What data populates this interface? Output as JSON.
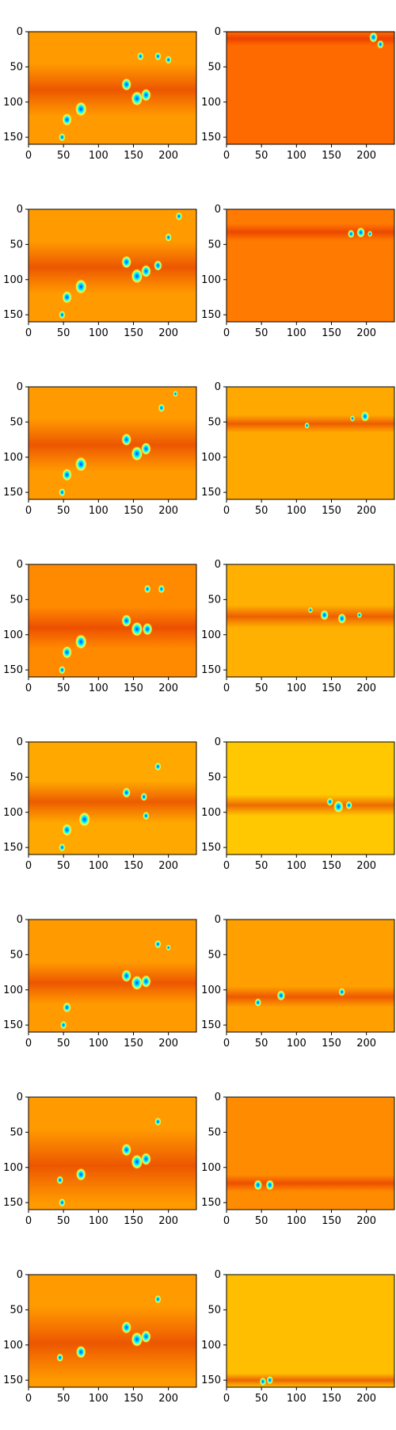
{
  "chart_data": {
    "type": "heatmap",
    "layout": {
      "rows": 8,
      "cols": 2
    },
    "x_range": [
      0,
      240
    ],
    "y_range": [
      0,
      160
    ],
    "y_inverted": true,
    "x_ticks": [
      0,
      50,
      100,
      150,
      200
    ],
    "y_ticks": [
      0,
      50,
      100,
      150
    ],
    "colormap": "jet",
    "grid": false,
    "panels": [
      {
        "row": 0,
        "col": 0,
        "background": "#ff9a00",
        "band_y": [
          45,
          120
        ],
        "blobs": [
          {
            "x": 140,
            "y": 75,
            "r": 6
          },
          {
            "x": 155,
            "y": 95,
            "r": 7
          },
          {
            "x": 168,
            "y": 90,
            "r": 6
          },
          {
            "x": 185,
            "y": 35,
            "r": 4
          },
          {
            "x": 75,
            "y": 110,
            "r": 7
          },
          {
            "x": 55,
            "y": 125,
            "r": 6
          },
          {
            "x": 48,
            "y": 150,
            "r": 4
          },
          {
            "x": 160,
            "y": 35,
            "r": 4
          },
          {
            "x": 200,
            "y": 40,
            "r": 4
          }
        ]
      },
      {
        "row": 0,
        "col": 1,
        "background": "#ff6a00",
        "band_y": [
          0,
          20
        ],
        "blobs": [
          {
            "x": 210,
            "y": 8,
            "r": 5
          },
          {
            "x": 220,
            "y": 18,
            "r": 4
          }
        ]
      },
      {
        "row": 1,
        "col": 0,
        "background": "#ff9a00",
        "band_y": [
          45,
          120
        ],
        "blobs": [
          {
            "x": 140,
            "y": 75,
            "r": 6
          },
          {
            "x": 155,
            "y": 95,
            "r": 7
          },
          {
            "x": 168,
            "y": 88,
            "r": 6
          },
          {
            "x": 185,
            "y": 80,
            "r": 5
          },
          {
            "x": 75,
            "y": 110,
            "r": 7
          },
          {
            "x": 55,
            "y": 125,
            "r": 6
          },
          {
            "x": 48,
            "y": 150,
            "r": 4
          },
          {
            "x": 200,
            "y": 40,
            "r": 4
          },
          {
            "x": 215,
            "y": 10,
            "r": 4
          }
        ]
      },
      {
        "row": 1,
        "col": 1,
        "background": "#ff7a00",
        "band_y": [
          20,
          45
        ],
        "blobs": [
          {
            "x": 192,
            "y": 33,
            "r": 5
          },
          {
            "x": 178,
            "y": 35,
            "r": 4
          },
          {
            "x": 205,
            "y": 35,
            "r": 3
          }
        ]
      },
      {
        "row": 2,
        "col": 0,
        "background": "#ff9a00",
        "band_y": [
          45,
          120
        ],
        "blobs": [
          {
            "x": 140,
            "y": 75,
            "r": 6
          },
          {
            "x": 155,
            "y": 95,
            "r": 7
          },
          {
            "x": 168,
            "y": 88,
            "r": 6
          },
          {
            "x": 75,
            "y": 110,
            "r": 7
          },
          {
            "x": 55,
            "y": 125,
            "r": 6
          },
          {
            "x": 48,
            "y": 150,
            "r": 4
          },
          {
            "x": 190,
            "y": 30,
            "r": 4
          },
          {
            "x": 210,
            "y": 10,
            "r": 3
          }
        ]
      },
      {
        "row": 2,
        "col": 1,
        "background": "#ffa800",
        "band_y": [
          40,
          65
        ],
        "blobs": [
          {
            "x": 198,
            "y": 42,
            "r": 5
          },
          {
            "x": 180,
            "y": 45,
            "r": 3
          },
          {
            "x": 115,
            "y": 55,
            "r": 3
          }
        ]
      },
      {
        "row": 3,
        "col": 0,
        "background": "#ff8a00",
        "band_y": [
          60,
          120
        ],
        "blobs": [
          {
            "x": 140,
            "y": 80,
            "r": 6
          },
          {
            "x": 155,
            "y": 92,
            "r": 7
          },
          {
            "x": 170,
            "y": 92,
            "r": 6
          },
          {
            "x": 75,
            "y": 110,
            "r": 7
          },
          {
            "x": 55,
            "y": 125,
            "r": 6
          },
          {
            "x": 48,
            "y": 150,
            "r": 4
          },
          {
            "x": 190,
            "y": 35,
            "r": 4
          },
          {
            "x": 170,
            "y": 35,
            "r": 4
          }
        ]
      },
      {
        "row": 3,
        "col": 1,
        "background": "#ffb000",
        "band_y": [
          58,
          90
        ],
        "blobs": [
          {
            "x": 140,
            "y": 72,
            "r": 5
          },
          {
            "x": 165,
            "y": 77,
            "r": 5
          },
          {
            "x": 120,
            "y": 65,
            "r": 3
          },
          {
            "x": 190,
            "y": 72,
            "r": 3
          }
        ]
      },
      {
        "row": 4,
        "col": 0,
        "background": "#ffa800",
        "band_y": [
          55,
          115
        ],
        "blobs": [
          {
            "x": 140,
            "y": 72,
            "r": 5
          },
          {
            "x": 165,
            "y": 78,
            "r": 4
          },
          {
            "x": 168,
            "y": 105,
            "r": 4
          },
          {
            "x": 80,
            "y": 110,
            "r": 7
          },
          {
            "x": 55,
            "y": 125,
            "r": 6
          },
          {
            "x": 48,
            "y": 150,
            "r": 4
          },
          {
            "x": 185,
            "y": 35,
            "r": 4
          }
        ]
      },
      {
        "row": 4,
        "col": 1,
        "background": "#ffc800",
        "band_y": [
          75,
          105
        ],
        "blobs": [
          {
            "x": 148,
            "y": 85,
            "r": 4
          },
          {
            "x": 160,
            "y": 92,
            "r": 6
          },
          {
            "x": 175,
            "y": 90,
            "r": 4
          }
        ]
      },
      {
        "row": 5,
        "col": 0,
        "background": "#ff9a00",
        "band_y": [
          60,
          120
        ],
        "blobs": [
          {
            "x": 140,
            "y": 80,
            "r": 6
          },
          {
            "x": 155,
            "y": 90,
            "r": 7
          },
          {
            "x": 168,
            "y": 88,
            "r": 6
          },
          {
            "x": 55,
            "y": 125,
            "r": 5
          },
          {
            "x": 50,
            "y": 150,
            "r": 4
          },
          {
            "x": 185,
            "y": 35,
            "r": 4
          },
          {
            "x": 200,
            "y": 40,
            "r": 3
          }
        ]
      },
      {
        "row": 5,
        "col": 1,
        "background": "#ffa000",
        "band_y": [
          95,
          125
        ],
        "blobs": [
          {
            "x": 78,
            "y": 108,
            "r": 5
          },
          {
            "x": 45,
            "y": 118,
            "r": 4
          },
          {
            "x": 165,
            "y": 103,
            "r": 4
          }
        ]
      },
      {
        "row": 6,
        "col": 0,
        "background": "#ff9a00",
        "band_y": [
          45,
          150
        ],
        "blobs": [
          {
            "x": 140,
            "y": 75,
            "r": 6
          },
          {
            "x": 155,
            "y": 92,
            "r": 7
          },
          {
            "x": 168,
            "y": 88,
            "r": 6
          },
          {
            "x": 75,
            "y": 110,
            "r": 6
          },
          {
            "x": 45,
            "y": 118,
            "r": 4
          },
          {
            "x": 48,
            "y": 150,
            "r": 4
          },
          {
            "x": 185,
            "y": 35,
            "r": 4
          }
        ]
      },
      {
        "row": 6,
        "col": 1,
        "background": "#ff8c00",
        "band_y": [
          110,
          135
        ],
        "blobs": [
          {
            "x": 45,
            "y": 125,
            "r": 5
          },
          {
            "x": 62,
            "y": 125,
            "r": 5
          }
        ]
      },
      {
        "row": 7,
        "col": 0,
        "background": "#ff9a00",
        "band_y": [
          45,
          150
        ],
        "blobs": [
          {
            "x": 140,
            "y": 75,
            "r": 6
          },
          {
            "x": 155,
            "y": 92,
            "r": 7
          },
          {
            "x": 168,
            "y": 88,
            "r": 6
          },
          {
            "x": 75,
            "y": 110,
            "r": 6
          },
          {
            "x": 45,
            "y": 118,
            "r": 4
          },
          {
            "x": 185,
            "y": 35,
            "r": 4
          }
        ]
      },
      {
        "row": 7,
        "col": 1,
        "background": "#ffbf00",
        "band_y": [
          140,
          160
        ],
        "blobs": [
          {
            "x": 52,
            "y": 152,
            "r": 4
          },
          {
            "x": 62,
            "y": 150,
            "r": 4
          }
        ]
      }
    ],
    "colors": {
      "cold": "#00ffff",
      "deep": "#0040ff",
      "band": "#e62000",
      "hot": "#ff3000"
    }
  }
}
